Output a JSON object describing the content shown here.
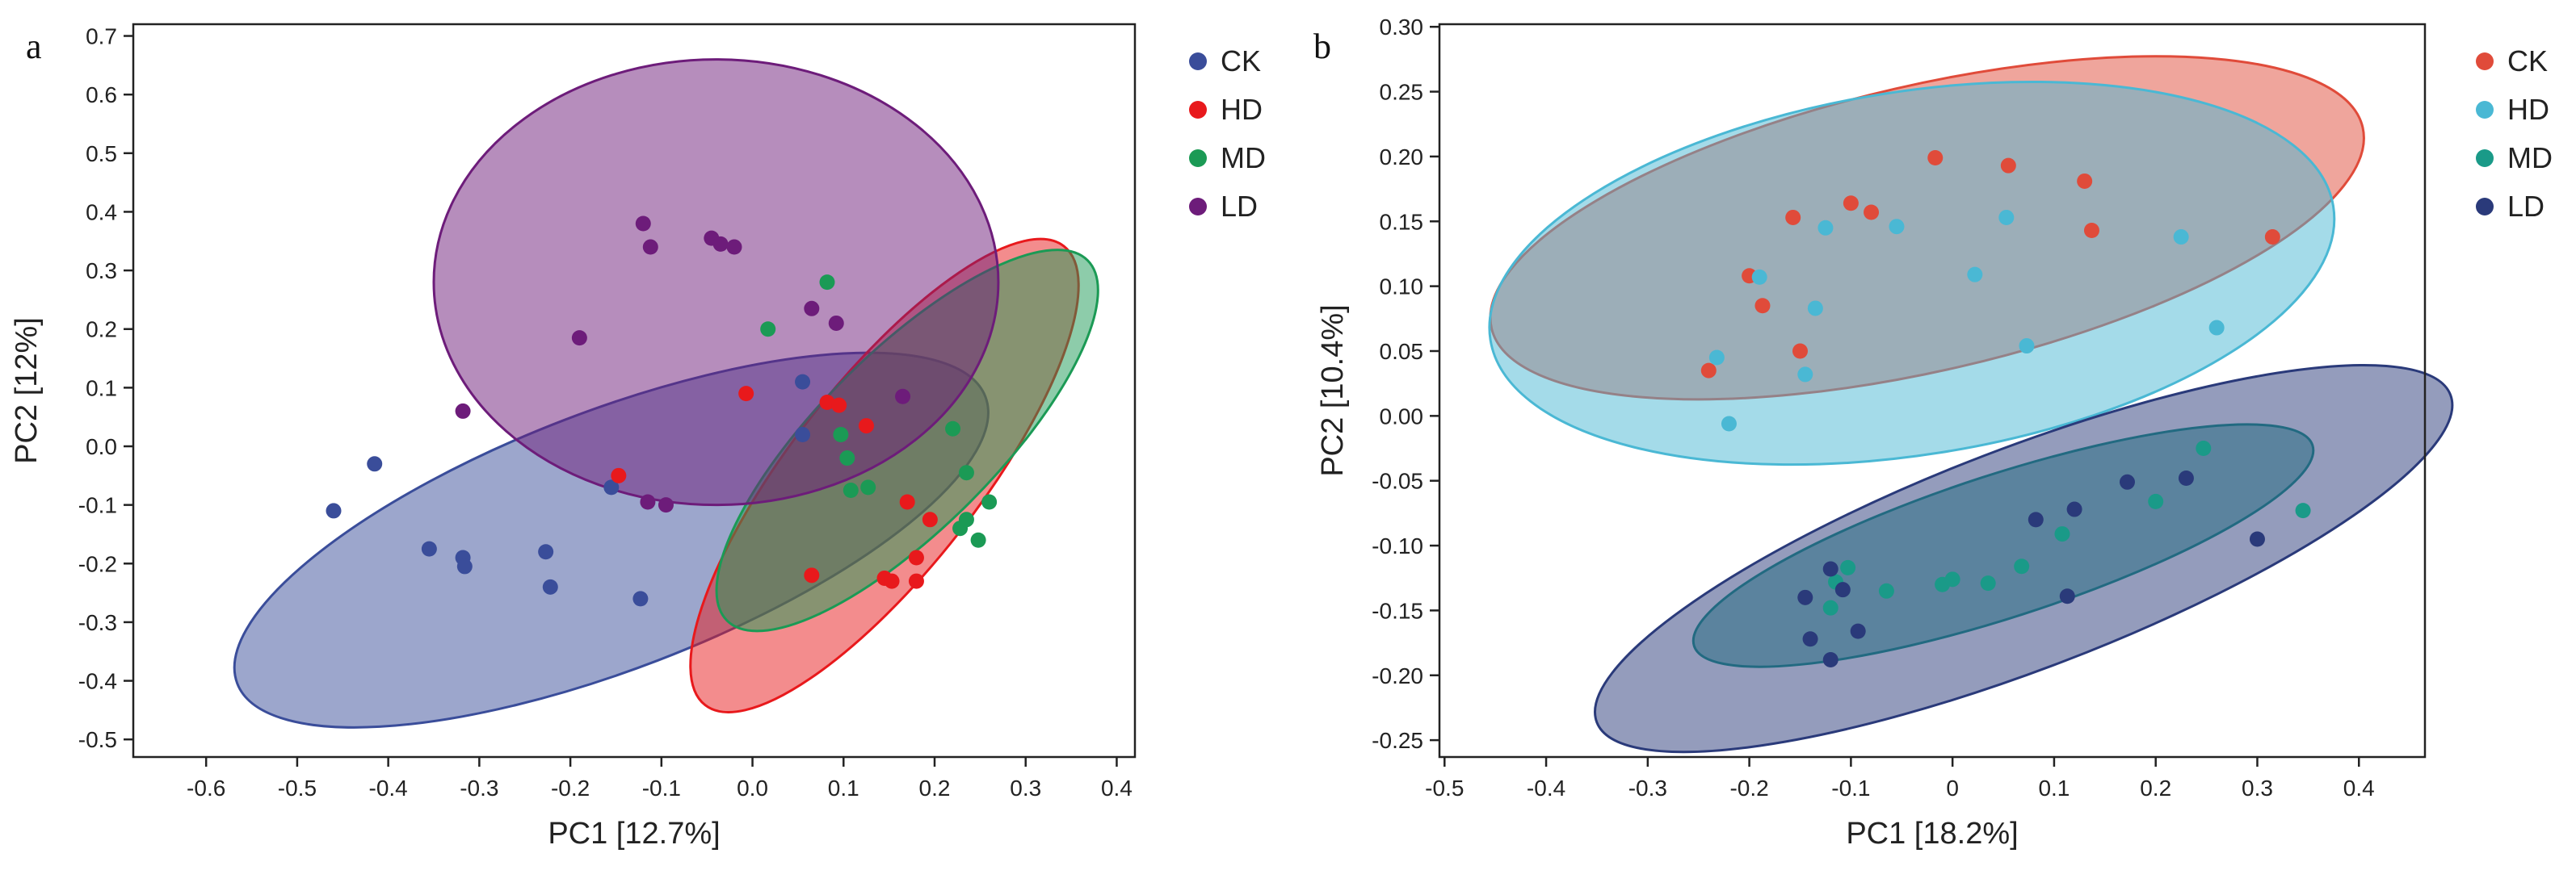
{
  "chart_data": [
    {
      "type": "scatter",
      "panel": "a",
      "xlabel": "PC1 [12.7%]",
      "ylabel": "PC2 [12%]",
      "xlim": [
        -0.68,
        0.42
      ],
      "ylim": [
        -0.53,
        0.72
      ],
      "xticks": [
        -0.6,
        -0.5,
        -0.4,
        -0.3,
        -0.2,
        -0.1,
        0.0,
        0.1,
        0.2,
        0.3,
        0.4
      ],
      "yticks": [
        -0.5,
        -0.4,
        -0.3,
        -0.2,
        -0.1,
        0.0,
        0.1,
        0.2,
        0.3,
        0.4,
        0.5,
        0.6,
        0.7
      ],
      "xtick_labels": [
        "-0.6",
        "-0.5",
        "-0.4",
        "-0.3",
        "-0.2",
        "-0.1",
        "0.0",
        "0.1",
        "0.2",
        "0.3",
        "0.4"
      ],
      "ytick_labels": [
        "-0.5",
        "-0.4",
        "-0.3",
        "-0.2",
        "-0.1",
        "0.0",
        "0.1",
        "0.2",
        "0.3",
        "0.4",
        "0.5",
        "0.6",
        "0.7"
      ],
      "legend": [
        "CK",
        "HD",
        "MD",
        "LD"
      ],
      "series": [
        {
          "name": "CK",
          "color": "#3a4d9a",
          "points": [
            [
              -0.46,
              -0.11
            ],
            [
              -0.415,
              -0.03
            ],
            [
              -0.355,
              -0.175
            ],
            [
              -0.318,
              -0.19
            ],
            [
              -0.316,
              -0.205
            ],
            [
              -0.227,
              -0.18
            ],
            [
              -0.222,
              -0.24
            ],
            [
              -0.155,
              -0.07
            ],
            [
              -0.123,
              -0.26
            ],
            [
              0.055,
              0.11
            ],
            [
              0.055,
              0.02
            ]
          ],
          "ellipse": {
            "cx": -0.155,
            "cy": -0.16,
            "rx": 0.44,
            "ry": 0.22,
            "angle_deg": 21
          }
        },
        {
          "name": "HD",
          "color": "#e8191c",
          "points": [
            [
              -0.147,
              -0.05
            ],
            [
              -0.007,
              0.09
            ],
            [
              0.065,
              -0.22
            ],
            [
              0.082,
              0.075
            ],
            [
              0.095,
              0.07
            ],
            [
              0.125,
              0.035
            ],
            [
              0.145,
              -0.225
            ],
            [
              0.153,
              -0.23
            ],
            [
              0.17,
              -0.095
            ],
            [
              0.18,
              -0.19
            ],
            [
              0.18,
              -0.23
            ],
            [
              0.195,
              -0.125
            ]
          ],
          "ellipse": {
            "cx": 0.145,
            "cy": -0.05,
            "rx": 0.32,
            "ry": 0.16,
            "angle_deg": 52
          }
        },
        {
          "name": "MD",
          "color": "#1b9a55",
          "points": [
            [
              0.017,
              0.2
            ],
            [
              0.082,
              0.28
            ],
            [
              0.097,
              0.02
            ],
            [
              0.104,
              -0.02
            ],
            [
              0.108,
              -0.075
            ],
            [
              0.127,
              -0.07
            ],
            [
              0.22,
              0.03
            ],
            [
              0.228,
              -0.14
            ],
            [
              0.235,
              -0.045
            ],
            [
              0.235,
              -0.125
            ],
            [
              0.248,
              -0.16
            ],
            [
              0.26,
              -0.095
            ]
          ],
          "ellipse": {
            "cx": 0.17,
            "cy": 0.01,
            "rx": 0.28,
            "ry": 0.15,
            "angle_deg": 45
          }
        },
        {
          "name": "LD",
          "color": "#6d1c7a",
          "points": [
            [
              -0.318,
              0.06
            ],
            [
              -0.19,
              0.185
            ],
            [
              -0.12,
              0.38
            ],
            [
              -0.112,
              0.34
            ],
            [
              -0.115,
              -0.095
            ],
            [
              -0.095,
              -0.1
            ],
            [
              -0.045,
              0.355
            ],
            [
              -0.035,
              0.345
            ],
            [
              -0.02,
              0.34
            ],
            [
              0.065,
              0.235
            ],
            [
              0.092,
              0.21
            ],
            [
              0.165,
              0.085
            ]
          ],
          "ellipse": {
            "cx": -0.04,
            "cy": 0.28,
            "rx": 0.31,
            "ry": 0.38,
            "angle_deg": 0
          }
        }
      ]
    },
    {
      "type": "scatter",
      "panel": "b",
      "xlabel": "PC1 [18.2%]",
      "ylabel": "PC2 [10.4%]",
      "xlim": [
        -0.505,
        0.465
      ],
      "ylim": [
        -0.263,
        0.302
      ],
      "xticks": [
        -0.5,
        -0.4,
        -0.3,
        -0.2,
        -0.1,
        0.0,
        0.1,
        0.2,
        0.3,
        0.4
      ],
      "yticks": [
        -0.25,
        -0.2,
        -0.15,
        -0.1,
        -0.05,
        0.0,
        0.05,
        0.1,
        0.15,
        0.2,
        0.25,
        0.3
      ],
      "xtick_labels": [
        "-0.5",
        "-0.4",
        "-0.3",
        "-0.2",
        "-0.1",
        "0",
        "0.1",
        "0.2",
        "0.3",
        "0.4"
      ],
      "ytick_labels": [
        "-0.25",
        "-0.20",
        "-0.15",
        "-0.10",
        "-0.05",
        "0.00",
        "0.05",
        "0.10",
        "0.15",
        "0.20",
        "0.25",
        "0.30"
      ],
      "legend": [
        "CK",
        "HD",
        "MD",
        "LD"
      ],
      "series": [
        {
          "name": "CK",
          "color": "#e04b3a",
          "points": [
            [
              -0.24,
              0.035
            ],
            [
              -0.2,
              0.108
            ],
            [
              -0.187,
              0.085
            ],
            [
              -0.157,
              0.153
            ],
            [
              -0.15,
              0.05
            ],
            [
              -0.1,
              0.164
            ],
            [
              -0.08,
              0.157
            ],
            [
              -0.017,
              0.199
            ],
            [
              0.055,
              0.193
            ],
            [
              0.13,
              0.181
            ],
            [
              0.137,
              0.143
            ],
            [
              0.315,
              0.138
            ]
          ],
          "ellipse": {
            "cx": -0.025,
            "cy": 0.145,
            "rx": 0.44,
            "ry": 0.11,
            "angle_deg": 13
          }
        },
        {
          "name": "HD",
          "color": "#4ab8d4",
          "points": [
            [
              -0.232,
              0.045
            ],
            [
              -0.22,
              -0.006
            ],
            [
              -0.19,
              0.107
            ],
            [
              -0.145,
              0.032
            ],
            [
              -0.135,
              0.083
            ],
            [
              -0.125,
              0.145
            ],
            [
              -0.055,
              0.146
            ],
            [
              0.022,
              0.109
            ],
            [
              0.053,
              0.153
            ],
            [
              0.073,
              0.054
            ],
            [
              0.225,
              0.138
            ],
            [
              0.26,
              0.068
            ]
          ],
          "ellipse": {
            "cx": -0.04,
            "cy": 0.11,
            "rx": 0.42,
            "ry": 0.14,
            "angle_deg": 9
          }
        },
        {
          "name": "MD",
          "color": "#1a9a88",
          "points": [
            [
              -0.12,
              -0.148
            ],
            [
              -0.115,
              -0.128
            ],
            [
              -0.103,
              -0.117
            ],
            [
              -0.065,
              -0.135
            ],
            [
              -0.01,
              -0.13
            ],
            [
              0.0,
              -0.126
            ],
            [
              0.035,
              -0.129
            ],
            [
              0.068,
              -0.116
            ],
            [
              0.108,
              -0.091
            ],
            [
              0.2,
              -0.066
            ],
            [
              0.247,
              -0.025
            ],
            [
              0.345,
              -0.073
            ]
          ],
          "ellipse": {
            "cx": 0.05,
            "cy": -0.1,
            "rx": 0.32,
            "ry": 0.055,
            "angle_deg": 18
          }
        },
        {
          "name": "LD",
          "color": "#2a3a7a",
          "points": [
            [
              -0.145,
              -0.14
            ],
            [
              -0.14,
              -0.172
            ],
            [
              -0.12,
              -0.118
            ],
            [
              -0.12,
              -0.188
            ],
            [
              -0.108,
              -0.134
            ],
            [
              -0.093,
              -0.166
            ],
            [
              0.082,
              -0.08
            ],
            [
              0.113,
              -0.139
            ],
            [
              0.12,
              -0.072
            ],
            [
              0.172,
              -0.051
            ],
            [
              0.23,
              -0.048
            ],
            [
              0.3,
              -0.095
            ]
          ],
          "ellipse": {
            "cx": 0.07,
            "cy": -0.11,
            "rx": 0.45,
            "ry": 0.085,
            "angle_deg": 21
          }
        }
      ]
    }
  ]
}
